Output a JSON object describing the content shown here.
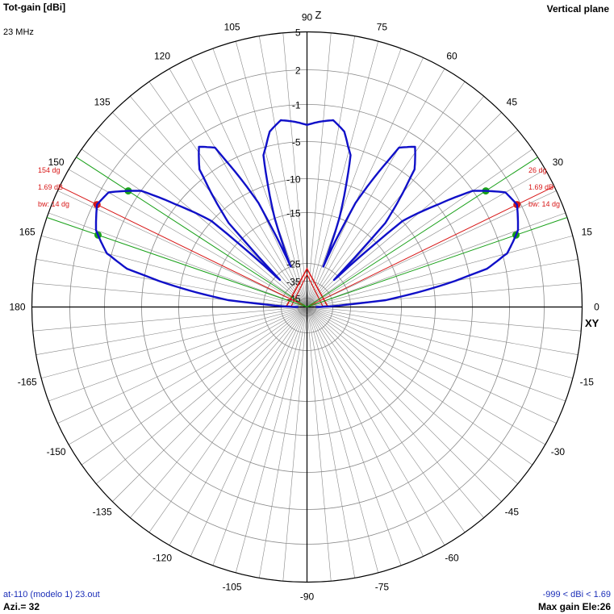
{
  "header": {
    "title": "Tot-gain [dBi]",
    "frequency": "23 MHz",
    "plane": "Vertical plane"
  },
  "footer": {
    "file": "at-110 (modelo 1) 23.out",
    "azimuth": "Azi.= 32",
    "range": "-999 < dBi < 1.69",
    "max_gain": "Max gain Ele:26"
  },
  "colors": {
    "grid": "#888888",
    "axis": "#000000",
    "pattern": "#1010c8",
    "beam": "#d81818",
    "halfpower": "#18a018"
  },
  "chart_data": {
    "type": "polar",
    "title": "Tot-gain [dBi]",
    "angle_unit": "deg",
    "angle_ticks": [
      0,
      15,
      30,
      45,
      60,
      75,
      90,
      105,
      120,
      135,
      150,
      165,
      180,
      -165,
      -150,
      -135,
      -120,
      -105,
      -90,
      -75,
      -60,
      -45,
      -30,
      -15
    ],
    "radial_ticks": [
      5,
      2,
      -1,
      -5,
      -10,
      -15,
      -25,
      -35,
      -45
    ],
    "axis_labels": {
      "x": "XY",
      "y": "Z"
    },
    "series": [
      {
        "values": [
          [
            0,
            -45
          ],
          [
            5,
            -18
          ],
          [
            10,
            -7
          ],
          [
            12,
            -3
          ],
          [
            15,
            -0.6
          ],
          [
            20,
            0.9
          ],
          [
            26,
            1.69
          ],
          [
            30,
            1.3
          ],
          [
            35,
            -1
          ],
          [
            42,
            -10
          ],
          [
            45,
            -28
          ],
          [
            47,
            -12
          ],
          [
            52,
            -4
          ],
          [
            56,
            -2
          ],
          [
            60,
            -3
          ],
          [
            65,
            -12
          ],
          [
            68,
            -25
          ],
          [
            70,
            -15
          ],
          [
            74,
            -6
          ],
          [
            78,
            -3.5
          ],
          [
            82,
            -2.5
          ],
          [
            86,
            -2.8
          ],
          [
            90,
            -3.2
          ],
          [
            94,
            -2.8
          ],
          [
            98,
            -2.5
          ],
          [
            102,
            -3.5
          ],
          [
            106,
            -6
          ],
          [
            110,
            -15
          ],
          [
            112,
            -25
          ],
          [
            115,
            -12
          ],
          [
            120,
            -3
          ],
          [
            124,
            -2
          ],
          [
            128,
            -4
          ],
          [
            133,
            -12
          ],
          [
            135,
            -28
          ],
          [
            138,
            -10
          ],
          [
            145,
            -1
          ],
          [
            150,
            1.3
          ],
          [
            154,
            1.69
          ],
          [
            160,
            0.9
          ],
          [
            165,
            -0.6
          ],
          [
            168,
            -3
          ],
          [
            170,
            -7
          ],
          [
            175,
            -18
          ],
          [
            180,
            -45
          ]
        ]
      }
    ],
    "max_gain_dbi": 1.69,
    "max_gain_elevations_deg": [
      26,
      154
    ],
    "beamwidth_deg": 14,
    "annotations": [
      {
        "side": "right",
        "lines": [
          "26 dg",
          "1.69 dB",
          "bw: 14 dg"
        ]
      },
      {
        "side": "left",
        "lines": [
          "154 dg",
          "1.69 dB",
          "bw: 14 dg"
        ]
      }
    ],
    "halfpower_elevations_deg": [
      [
        19,
        33
      ],
      [
        147,
        161
      ]
    ],
    "grid": true
  }
}
